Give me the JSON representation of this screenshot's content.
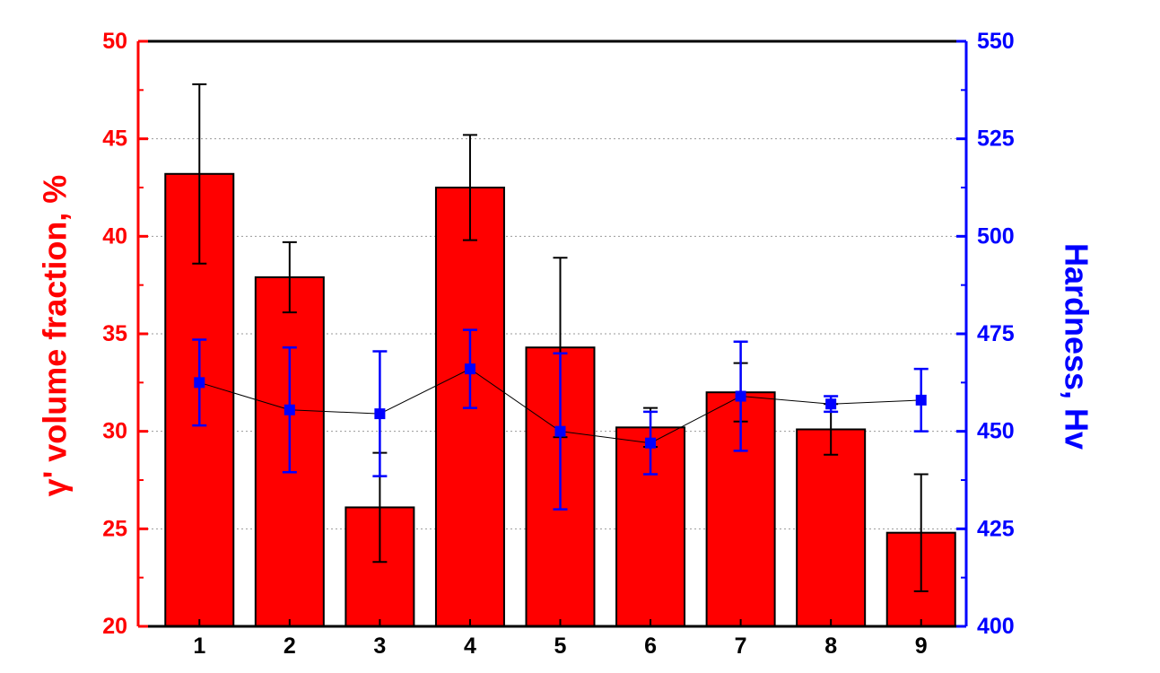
{
  "chart_data": {
    "type": "bar",
    "categories": [
      "1",
      "2",
      "3",
      "4",
      "5",
      "6",
      "7",
      "8",
      "9"
    ],
    "left_axis": {
      "label": "γ' volume fraction, %",
      "ylim": [
        20,
        50
      ],
      "ticks": [
        "20",
        "25",
        "30",
        "35",
        "40",
        "45",
        "50"
      ],
      "color": "#ff0000"
    },
    "right_axis": {
      "label": "Hardness, Hv",
      "ylim": [
        400,
        550
      ],
      "ticks": [
        "400",
        "425",
        "450",
        "475",
        "500",
        "525",
        "550"
      ],
      "color": "#0000ff"
    },
    "series": [
      {
        "type": "bar",
        "axis": "left",
        "color": "#ff0000",
        "values": [
          43.2,
          37.9,
          26.1,
          42.5,
          34.3,
          30.2,
          32.0,
          30.1,
          24.8
        ],
        "error": [
          4.6,
          1.8,
          2.8,
          2.7,
          4.6,
          1.0,
          1.5,
          1.3,
          3.0
        ]
      },
      {
        "type": "line",
        "axis": "right",
        "color": "#0000ff",
        "marker": "square",
        "line_color": "#000000",
        "values": [
          462.5,
          455.5,
          454.5,
          466.0,
          450.0,
          447.0,
          459.0,
          457.0,
          458.0
        ],
        "error": [
          11.0,
          16.0,
          16.0,
          10.0,
          20.0,
          8.0,
          14.0,
          2.0,
          8.0
        ]
      }
    ],
    "grid": "horizontal dotted",
    "legend": "none"
  }
}
